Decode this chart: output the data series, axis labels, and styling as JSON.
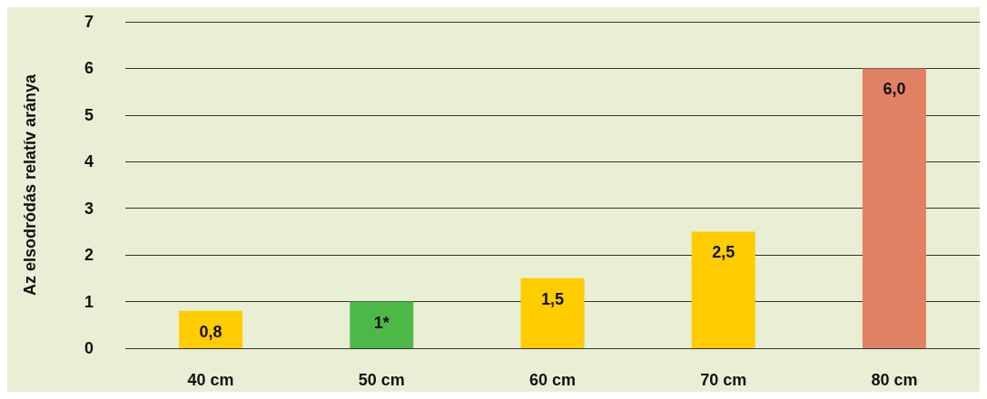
{
  "chart_data": {
    "type": "bar",
    "ylabel": "Az elsodródás relatív aránya",
    "categories": [
      "40 cm",
      "50 cm",
      "60 cm",
      "70 cm",
      "80 cm"
    ],
    "values": [
      0.8,
      1,
      1.5,
      2.5,
      6
    ],
    "colors": [
      "#ffcc00",
      "#4db848",
      "#ffcc00",
      "#ffcc00",
      "#e08163"
    ],
    "value_labels": [
      "0,8",
      "1*",
      "1,5",
      "2,5",
      "6,0"
    ],
    "ylim": [
      0,
      7
    ],
    "yticks": [
      0,
      1,
      2,
      3,
      4,
      5,
      6,
      7
    ],
    "grid": "y"
  }
}
